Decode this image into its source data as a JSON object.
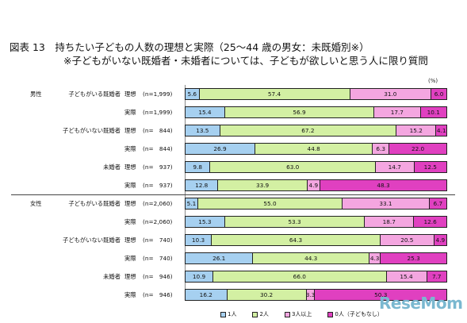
{
  "title": "図表 13　持ちたい子どもの人数の理想と実際（25～44 歳の男女：未既婚別※）",
  "subtitle": "※子どもがいない既婚者・未婚者については、子どもが欲しいと思う人に限り質問",
  "unit": "(%)",
  "logo_text": "ReseMom",
  "colors": {
    "one_child": "#a6d0f0",
    "two_children": "#d3f0a3",
    "three_plus": "#f4a6e0",
    "none": "#e040c0"
  },
  "chart_data": {
    "type": "bar",
    "stacked": true,
    "orientation": "horizontal",
    "xlim": [
      0,
      100
    ],
    "legend_position": "bottom",
    "legend": [
      "1人",
      "2人",
      "3人以上",
      "0人（子どもなし）"
    ],
    "rows": [
      {
        "sex": "男性",
        "group": "子どもがいる既婚者",
        "type": "理想",
        "n": "(n=1,999)",
        "values": [
          5.6,
          57.4,
          31.0,
          6.0
        ]
      },
      {
        "sex": "",
        "group": "",
        "type": "実際",
        "n": "(n=1,999)",
        "values": [
          15.4,
          56.9,
          17.7,
          10.1
        ]
      },
      {
        "sex": "",
        "group": "子どもがいない既婚者",
        "type": "理想",
        "n": "(n=　844)",
        "values": [
          13.5,
          67.2,
          15.2,
          4.1
        ]
      },
      {
        "sex": "",
        "group": "",
        "type": "実際",
        "n": "(n=　844)",
        "values": [
          26.9,
          44.8,
          6.3,
          22.0
        ]
      },
      {
        "sex": "",
        "group": "未婚者",
        "type": "理想",
        "n": "(n=　937)",
        "values": [
          9.8,
          63.0,
          14.7,
          12.5
        ]
      },
      {
        "sex": "",
        "group": "",
        "type": "実際",
        "n": "(n=　937)",
        "values": [
          12.8,
          33.9,
          4.9,
          48.3
        ]
      },
      {
        "sex": "女性",
        "group": "子どもがいる既婚者",
        "type": "理想",
        "n": "(n=2,060)",
        "values": [
          5.1,
          55.0,
          33.1,
          6.7
        ]
      },
      {
        "sex": "",
        "group": "",
        "type": "実際",
        "n": "(n=2,060)",
        "values": [
          15.3,
          53.3,
          18.7,
          12.6
        ]
      },
      {
        "sex": "",
        "group": "子どもがいない既婚者",
        "type": "理想",
        "n": "(n=　740)",
        "values": [
          10.3,
          64.3,
          20.5,
          4.9
        ]
      },
      {
        "sex": "",
        "group": "",
        "type": "実際",
        "n": "(n=　740)",
        "values": [
          26.1,
          44.3,
          4.3,
          25.3
        ]
      },
      {
        "sex": "",
        "group": "未婚者",
        "type": "理想",
        "n": "(n=　946)",
        "values": [
          10.9,
          66.0,
          15.4,
          7.7
        ]
      },
      {
        "sex": "",
        "group": "",
        "type": "実際",
        "n": "(n=　946)",
        "values": [
          16.2,
          30.2,
          3.3,
          50.3
        ]
      }
    ]
  }
}
